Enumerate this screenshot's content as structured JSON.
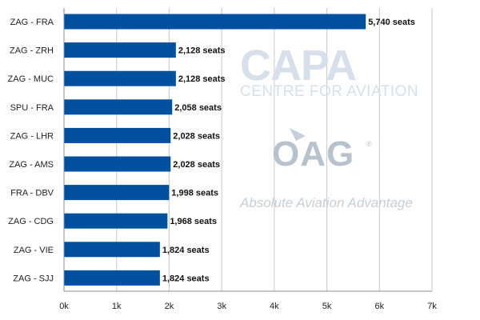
{
  "chart_data": {
    "type": "bar",
    "orientation": "horizontal",
    "categories": [
      "ZAG - FRA",
      "ZAG - ZRH",
      "ZAG - MUC",
      "SPU - FRA",
      "ZAG - LHR",
      "ZAG - AMS",
      "FRA - DBV",
      "ZAG - CDG",
      "ZAG - VIE",
      "ZAG - SJJ"
    ],
    "values": [
      5740,
      2128,
      2128,
      2058,
      2028,
      2028,
      1998,
      1968,
      1824,
      1824
    ],
    "data_labels": [
      "5,740 seats",
      "2,128 seats",
      "2,128 seats",
      "2,058 seats",
      "2,028 seats",
      "2,028 seats",
      "1,998 seats",
      "1,968 seats",
      "1,824 seats",
      "1,824 seats"
    ],
    "x_ticks": [
      "0k",
      "1k",
      "2k",
      "3k",
      "4k",
      "5k",
      "6k",
      "7k"
    ],
    "xlim": [
      0,
      7000
    ],
    "grid": true,
    "bar_color": "#0050a0"
  },
  "watermark": {
    "capa_logo": "CAPA",
    "capa_sub": "CENTRE FOR AVIATION",
    "oag_logo": "OAG",
    "oag_reg": "®",
    "oag_tagline": "Absolute Aviation Advantage"
  }
}
